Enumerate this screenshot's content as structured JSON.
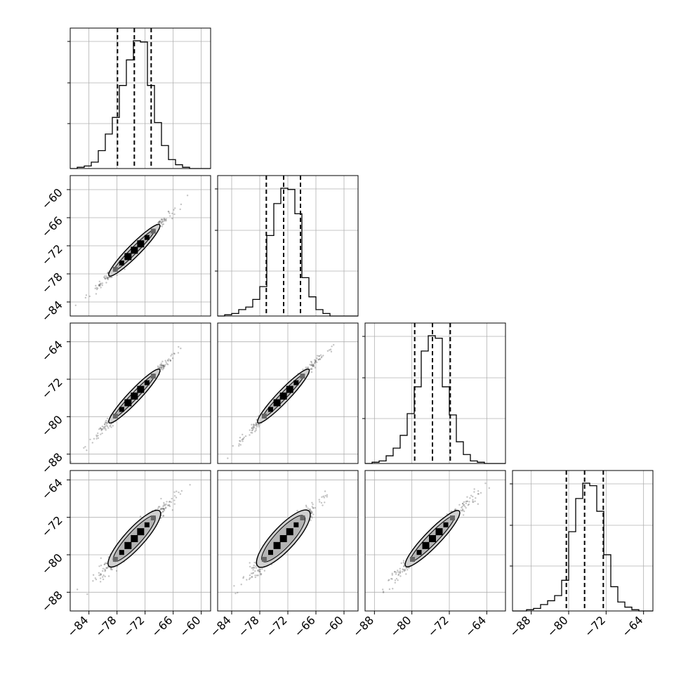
{
  "chart_data": {
    "type": "corner",
    "variables": [
      {
        "range": [
          -88,
          -58
        ],
        "ticks": [
          -84,
          -78,
          -72,
          -66,
          -60
        ],
        "tick_labels": [
          "−84",
          "−78",
          "−72",
          "−66",
          "−60"
        ],
        "quantiles": [
          -77.9,
          -74.3,
          -70.7
        ],
        "mean": -74.3,
        "sd": 3.6
      },
      {
        "range": [
          -87,
          -57
        ],
        "ticks": [
          -84,
          -78,
          -72,
          -66,
          -60
        ],
        "tick_labels": [
          "−84",
          "−78",
          "−72",
          "−66",
          "−60"
        ],
        "quantiles": [
          -76.6,
          -72.9,
          -69.3
        ],
        "mean": -72.9,
        "sd": 3.6
      },
      {
        "range": [
          -90,
          -60
        ],
        "ticks": [
          -88,
          -80,
          -72,
          -64
        ],
        "tick_labels": [
          "−88",
          "−80",
          "−72",
          "−64"
        ],
        "quantiles": [
          -79.4,
          -75.6,
          -71.8
        ],
        "mean": -75.6,
        "sd": 3.8
      },
      {
        "range": [
          -92,
          -62
        ],
        "ticks": [
          -88,
          -80,
          -72,
          -64
        ],
        "tick_labels": [
          "−88",
          "−80",
          "−72",
          "−64"
        ],
        "quantiles": [
          -80.5,
          -76.6,
          -72.6
        ],
        "mean": -76.6,
        "sd": 3.9
      }
    ],
    "histograms": [
      {
        "bin_edges": [
          -88,
          -86.5,
          -85,
          -83.5,
          -82,
          -80.5,
          -79,
          -77.5,
          -76,
          -74.5,
          -73,
          -71.5,
          -70,
          -68.5,
          -67,
          -65.5,
          -64,
          -62.5,
          -61,
          -59.5,
          -58
        ],
        "counts": [
          0.0,
          0.01,
          0.02,
          0.05,
          0.14,
          0.27,
          0.4,
          0.65,
          0.85,
          1.0,
          0.99,
          0.65,
          0.36,
          0.18,
          0.07,
          0.03,
          0.01,
          0.0,
          0.0,
          0.0
        ]
      },
      {
        "bin_edges": [
          -87,
          -85.5,
          -84,
          -82.5,
          -81,
          -79.5,
          -78,
          -76.5,
          -75,
          -73.5,
          -72,
          -70.5,
          -69,
          -67.5,
          -66,
          -64.5,
          -63,
          -61.5,
          -60,
          -58.5,
          -57
        ],
        "counts": [
          0.0,
          0.01,
          0.02,
          0.05,
          0.07,
          0.13,
          0.23,
          0.63,
          0.88,
          1.0,
          0.99,
          0.8,
          0.3,
          0.15,
          0.05,
          0.02,
          0.0,
          0.0,
          0.0,
          0.0
        ]
      },
      {
        "bin_edges": [
          -90,
          -88.5,
          -87,
          -85.5,
          -84,
          -82.5,
          -81,
          -79.5,
          -78,
          -76.5,
          -75,
          -73.5,
          -72,
          -70.5,
          -69,
          -67.5,
          -66,
          -64.5,
          -63,
          -61.5,
          -60
        ],
        "counts": [
          0.0,
          0.01,
          0.02,
          0.06,
          0.12,
          0.22,
          0.39,
          0.6,
          0.88,
          1.0,
          0.98,
          0.6,
          0.38,
          0.17,
          0.07,
          0.02,
          0.01,
          0.0,
          0.0,
          0.0
        ]
      },
      {
        "bin_edges": [
          -92,
          -90.5,
          -89,
          -87.5,
          -86,
          -84.5,
          -83,
          -81.5,
          -80,
          -78.5,
          -77,
          -75.5,
          -74,
          -72.5,
          -71,
          -69.5,
          -68,
          -66.5,
          -65,
          -63.5,
          -62
        ],
        "counts": [
          0.0,
          0.0,
          0.01,
          0.02,
          0.05,
          0.08,
          0.12,
          0.24,
          0.62,
          0.88,
          1.0,
          0.98,
          0.78,
          0.44,
          0.19,
          0.07,
          0.03,
          0.01,
          0.0,
          0.0
        ]
      }
    ],
    "correlations": [
      [
        1.0,
        0.99,
        0.99,
        0.97
      ],
      [
        0.99,
        1.0,
        0.99,
        0.96
      ],
      [
        0.99,
        0.99,
        1.0,
        0.98
      ],
      [
        0.97,
        0.96,
        0.98,
        1.0
      ]
    ],
    "grid": true,
    "colors": {
      "line": "#000000",
      "grid": "#b0b0b0",
      "contour_fill": "#d0d0d0",
      "points": "#555555"
    }
  }
}
